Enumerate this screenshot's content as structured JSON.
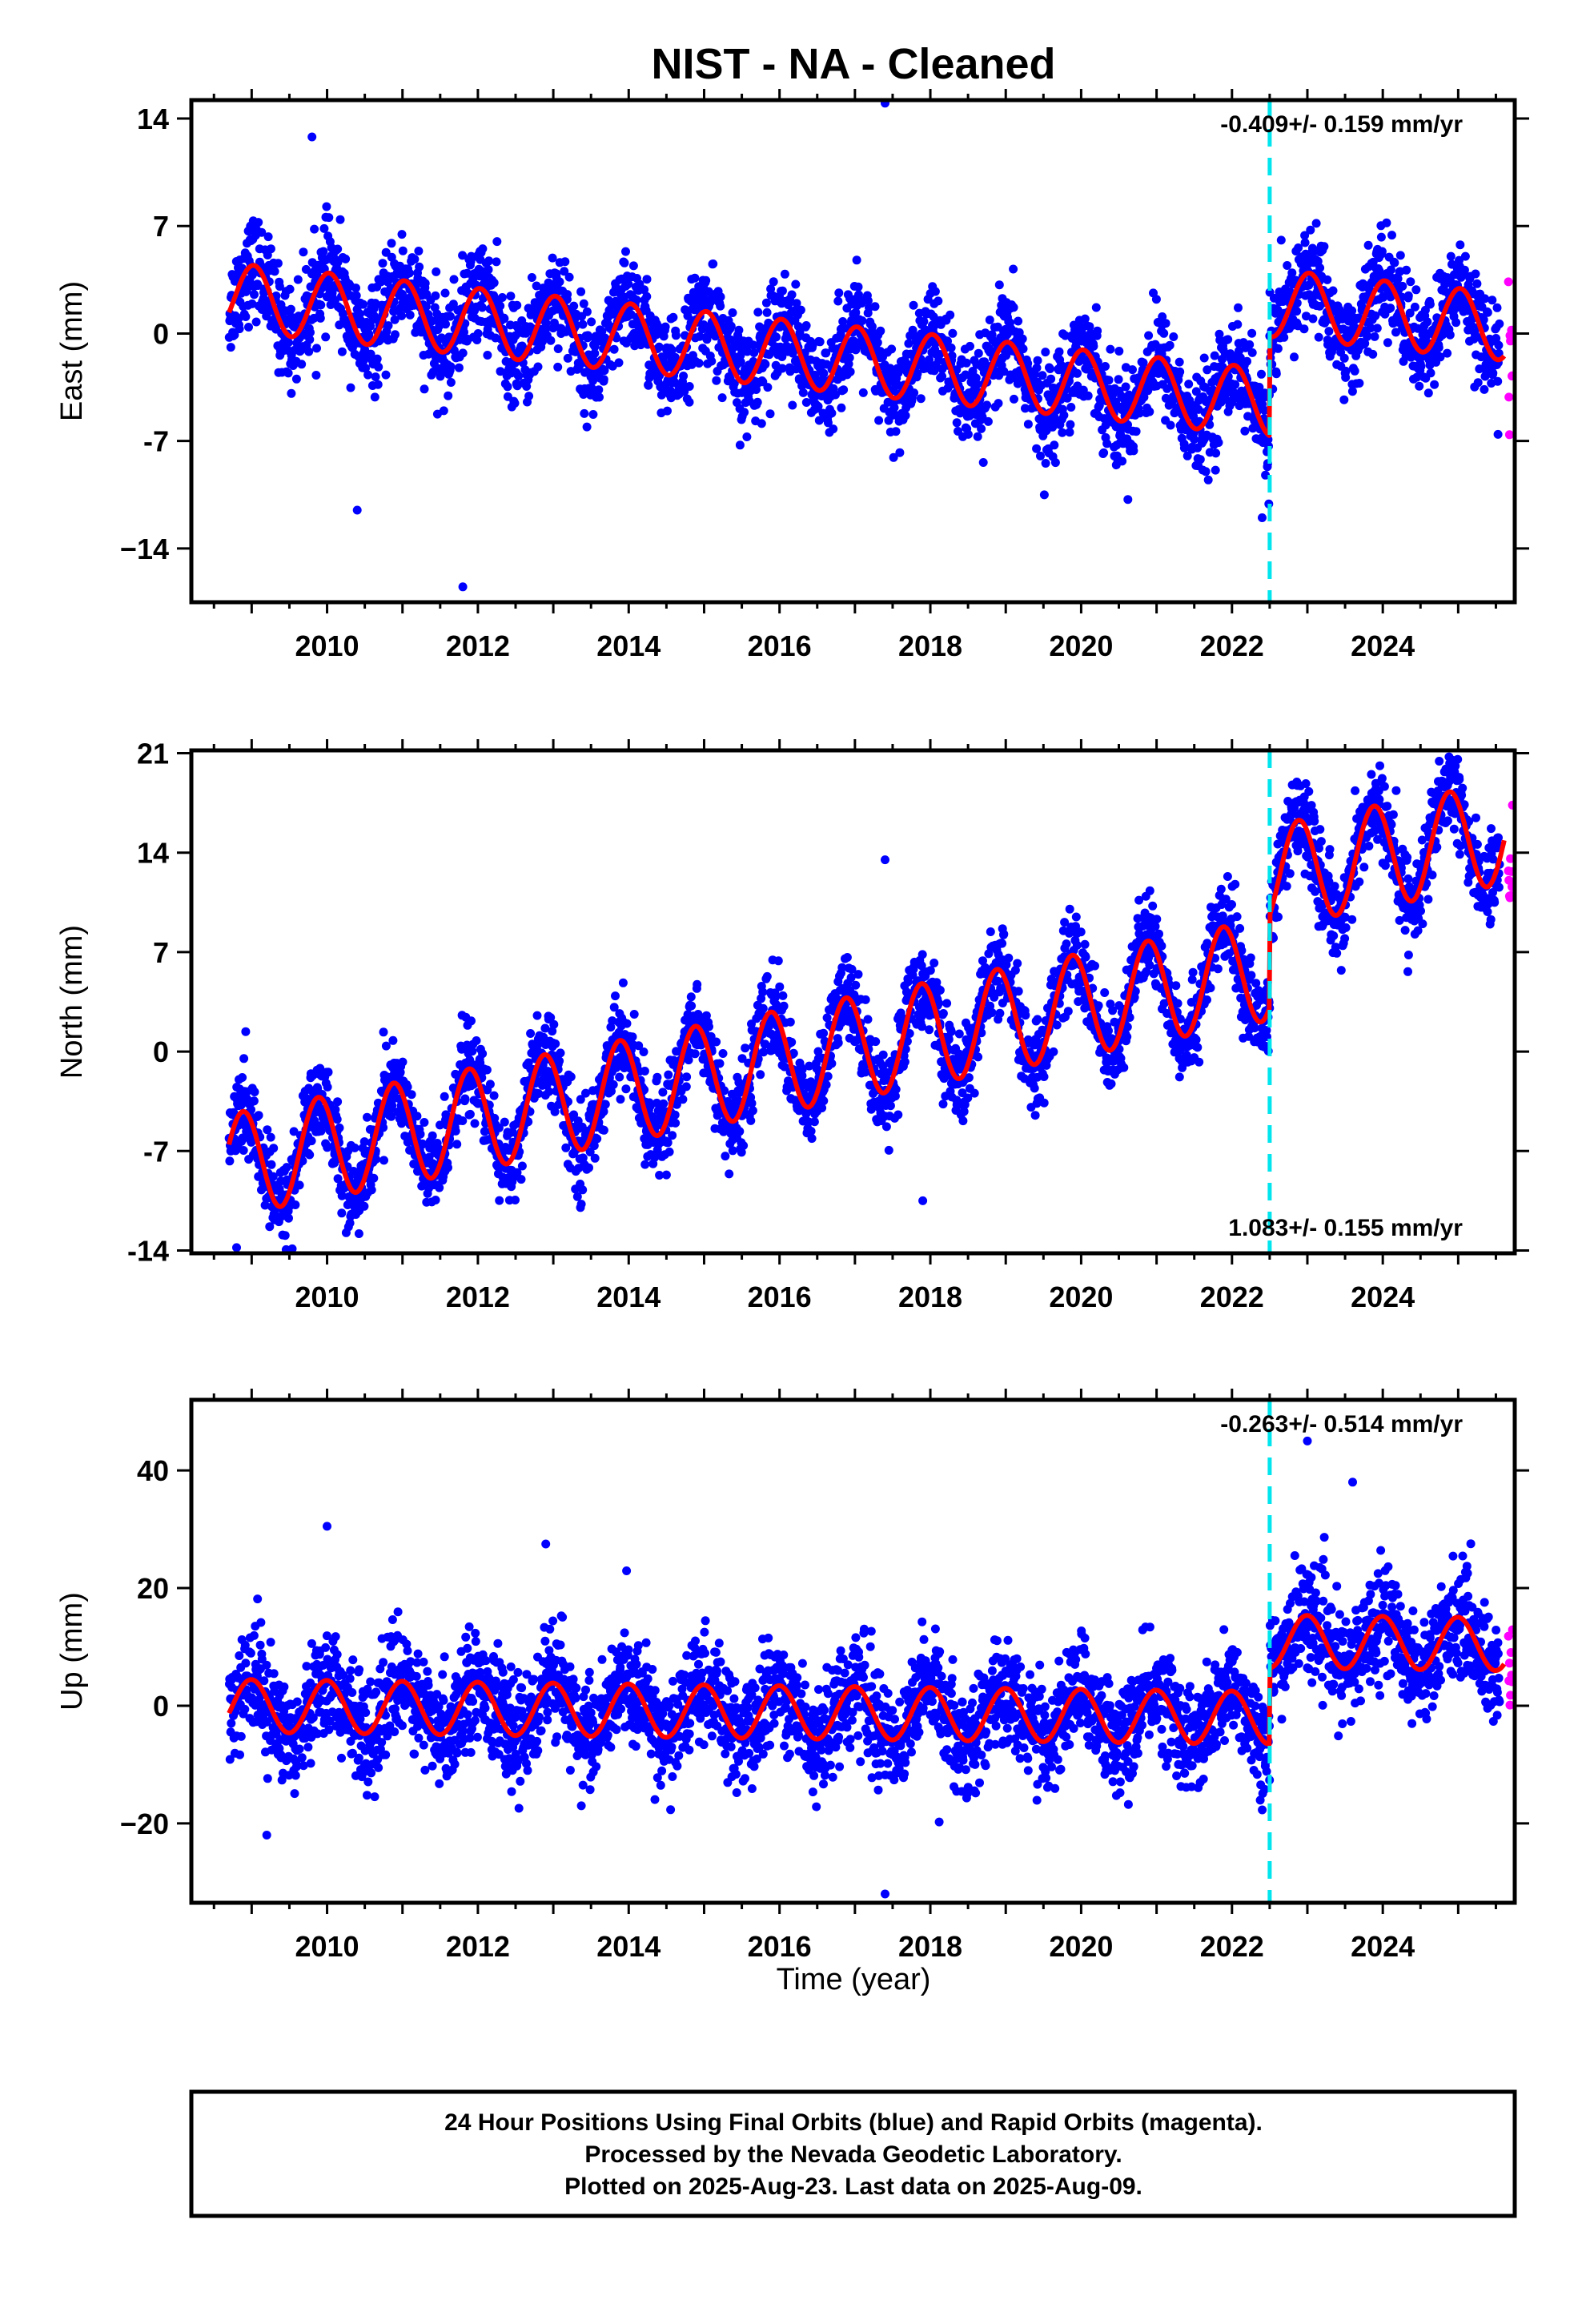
{
  "chart_data": {
    "type": "scatter",
    "title": "NIST  - NA - Cleaned",
    "xlabel": "Time (year)",
    "x_ticks": [
      2010,
      2012,
      2014,
      2016,
      2018,
      2020,
      2022,
      2024
    ],
    "xlim": [
      2008.2,
      2025.75
    ],
    "data_span": [
      2008.7,
      2025.61
    ],
    "step_epoch": 2022.5,
    "rapid_orbit_start": 2025.55,
    "colors": {
      "final_orbits": "#0000ff",
      "rapid_orbits": "#ff00ff",
      "model": "#ff0000",
      "step_line": "#00e5ee",
      "frame": "#000000"
    },
    "panels": [
      {
        "key": "east",
        "ylabel": "East (mm)",
        "ylim": [
          -17.5,
          15.2
        ],
        "y_ticks": [
          14,
          7,
          0,
          -7,
          -14
        ],
        "y_tick_labels": [
          "14",
          "7",
          "0",
          "-7",
          "−14"
        ],
        "rate_text": "-0.409+/- 0.159 mmyr",
        "rate_label": "-0.409+/- 0.159 mm/yr",
        "rate_position": "top-right",
        "model": {
          "intercept": 2.4,
          "rate": -0.5,
          "amp": 2.2,
          "phase": 1.4,
          "offset": 6.5,
          "post_rate": 0.0
        },
        "scatter_sd": 1.6,
        "outliers": [
          [
            2017.4,
            15
          ],
          [
            2011.8,
            -16.5
          ],
          [
            2009.8,
            12.8
          ],
          [
            2010.4,
            -11.5
          ],
          [
            2022.4,
            -12.0
          ]
        ]
      },
      {
        "key": "north",
        "ylabel": "North (mm)",
        "ylim": [
          -14.2,
          21.2
        ],
        "y_ticks": [
          21,
          14,
          7,
          0,
          -7,
          -14
        ],
        "y_tick_labels": [
          "21",
          "14",
          "7",
          "0",
          "-7",
          "-14"
        ],
        "rate_label": "1.083+/- 0.155 mm/yr",
        "rate_position": "bottom-right",
        "model": {
          "intercept": -8.0,
          "rate": 1.0,
          "amp": 3.6,
          "phase": 2.3,
          "offset": 6.5,
          "post_rate": 0.0
        },
        "scatter_sd": 1.5,
        "outliers": [
          [
            2017.4,
            13.5
          ],
          [
            2017.9,
            -10.5
          ],
          [
            2008.8,
            -13.8
          ]
        ]
      },
      {
        "key": "up",
        "ylabel": "Up (mm)",
        "ylim": [
          -33.5,
          52
        ],
        "y_ticks": [
          40,
          20,
          0,
          -20
        ],
        "y_tick_labels": [
          "40",
          "20",
          "0",
          "−20"
        ],
        "rate_label": "-0.263+/- 0.514 mm/yr",
        "rate_position": "top-right",
        "model": {
          "intercept": 0.0,
          "rate": -0.15,
          "amp": 4.5,
          "phase": 1.6,
          "offset": 13.0,
          "post_rate": -0.15
        },
        "scatter_sd": 4.5,
        "outliers": [
          [
            2017.4,
            -32
          ],
          [
            2010.0,
            30.5
          ],
          [
            2012.9,
            27.5
          ],
          [
            2023.0,
            45
          ],
          [
            2023.6,
            38
          ],
          [
            2009.2,
            -22
          ]
        ]
      }
    ]
  },
  "footer": {
    "line1": "24 Hour Positions Using Final Orbits (blue) and Rapid Orbits (magenta).",
    "line2": "Processed by the Nevada Geodetic Laboratory.",
    "line3": "Plotted on 2025-Aug-23. Last data on 2025-Aug-09."
  }
}
